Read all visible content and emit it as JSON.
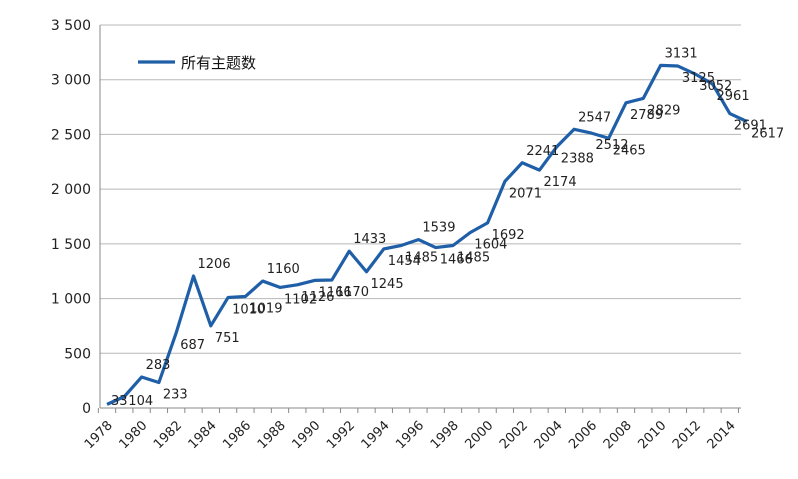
{
  "chart_data": {
    "type": "line",
    "title": "",
    "xlabel": "",
    "ylabel": "",
    "x": [
      1978,
      1979,
      1980,
      1981,
      1982,
      1983,
      1984,
      1985,
      1986,
      1987,
      1988,
      1989,
      1990,
      1991,
      1992,
      1993,
      1994,
      1995,
      1996,
      1997,
      1998,
      1999,
      2000,
      2001,
      2002,
      2003,
      2004,
      2005,
      2006,
      2007,
      2008,
      2009,
      2010,
      2011,
      2012,
      2013,
      2014,
      2015
    ],
    "x_tick_labels": [
      "1978",
      "1980",
      "1982",
      "1984",
      "1986",
      "1988",
      "1990",
      "1992",
      "1994",
      "1996",
      "1998",
      "2000",
      "2002",
      "2004",
      "2006",
      "2008",
      "2010",
      "2012",
      "2014"
    ],
    "ylim": [
      0,
      3500
    ],
    "y_ticks": [
      0,
      500,
      1000,
      1500,
      2000,
      2500,
      3000,
      3500
    ],
    "y_tick_labels": [
      "0",
      "500",
      "1 000",
      "1 500",
      "2 000",
      "2 500",
      "3 000",
      "3 500"
    ],
    "grid": "horizontal",
    "legend_position": "top-left",
    "series": [
      {
        "name": "所有主题数",
        "color": "#1f5fa8",
        "values": [
          33,
          104,
          283,
          233,
          687,
          1206,
          751,
          1010,
          1019,
          1160,
          1102,
          1126,
          1166,
          1170,
          1433,
          1245,
          1454,
          1485,
          1539,
          1466,
          1485,
          1604,
          1692,
          2071,
          2241,
          2174,
          2388,
          2547,
          2512,
          2465,
          2789,
          2829,
          3131,
          3125,
          3052,
          2961,
          2691,
          2617
        ],
        "labels": [
          "33",
          "104",
          "283",
          "233",
          "687",
          "1206",
          "751",
          "1010",
          "1019",
          "1160",
          "1102",
          "1126",
          "1166",
          "1170",
          "1433",
          "1245",
          "1454",
          "1485",
          "1539",
          "1466",
          "1485",
          "1604",
          "1692",
          "2071",
          "2241",
          "2174",
          "2388",
          "2547",
          "2512",
          "2465",
          "2789",
          "2829",
          "3131",
          "3125",
          "3052",
          "2961",
          "2691",
          "2617"
        ]
      }
    ]
  }
}
